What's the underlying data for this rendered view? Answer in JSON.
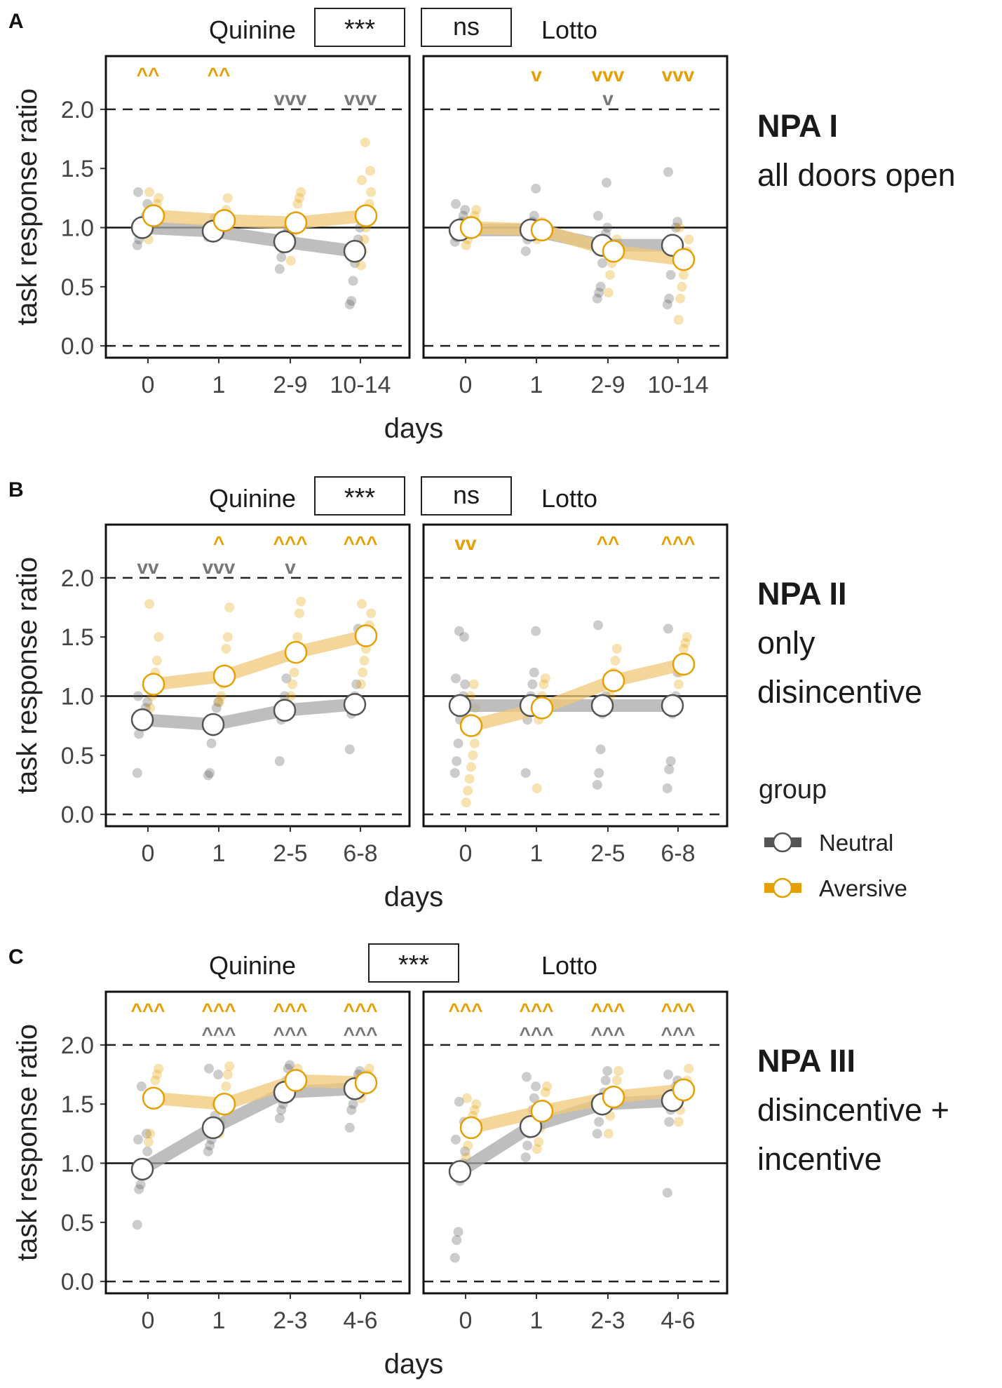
{
  "colors": {
    "neutral": "#555555",
    "neutral_line": "#a8a8a8",
    "aversive": "#e69f00",
    "aversive_line": "#f0c878"
  },
  "y_axis_label": "task response ratio",
  "x_axis_label": "days",
  "legend": {
    "title": "group",
    "items": [
      "Neutral",
      "Aversive"
    ]
  },
  "chart_data": [
    {
      "type": "line",
      "panel_label": "A",
      "condition": "NPA I",
      "condition_desc": [
        "all doors open"
      ],
      "xlabel": "days",
      "ylabel": "task response ratio",
      "yticks": [
        "0.0",
        "0.5",
        "1.0",
        "1.5",
        "2.0"
      ],
      "ylim": [
        -0.1,
        2.45
      ],
      "comparison_boxes": [
        "***",
        "ns"
      ],
      "facets": [
        {
          "name": "Quinine",
          "categories": [
            "0",
            "1",
            "2-9",
            "10-14"
          ],
          "series": [
            {
              "name": "Neutral",
              "values": [
                1.0,
                0.97,
                0.88,
                0.8
              ],
              "points": [
                [
                  0.85,
                  0.9,
                  0.95,
                  1.0,
                  1.05,
                  1.1,
                  1.2,
                  1.3
                ],
                [
                  0.92,
                  0.95,
                  0.98,
                  1.02,
                  1.08
                ],
                [
                  0.65,
                  0.75,
                  0.82,
                  0.88,
                  0.95,
                  1.0
                ],
                [
                  0.35,
                  0.38,
                  0.55,
                  0.7,
                  0.8,
                  0.9,
                  1.0
                ]
              ]
            },
            {
              "name": "Aversive",
              "values": [
                1.1,
                1.06,
                1.04,
                1.1
              ],
              "points": [
                [
                  0.9,
                  1.0,
                  1.05,
                  1.1,
                  1.15,
                  1.2,
                  1.25,
                  1.3
                ],
                [
                  0.98,
                  1.02,
                  1.06,
                  1.1,
                  1.15,
                  1.25
                ],
                [
                  0.72,
                  0.95,
                  1.0,
                  1.1,
                  1.2,
                  1.25,
                  1.3
                ],
                [
                  0.68,
                  0.8,
                  0.9,
                  1.0,
                  1.1,
                  1.2,
                  1.3,
                  1.4,
                  1.48,
                  1.72
                ]
              ]
            }
          ],
          "annotations": {
            "Aversive": [
              "^^",
              "^^",
              "",
              ""
            ],
            "Neutral": [
              "",
              "",
              "vvv",
              "vvv"
            ]
          }
        },
        {
          "name": "Lotto",
          "categories": [
            "0",
            "1",
            "2-9",
            "10-14"
          ],
          "series": [
            {
              "name": "Neutral",
              "values": [
                0.98,
                0.98,
                0.85,
                0.85
              ],
              "points": [
                [
                  0.88,
                  0.92,
                  0.95,
                  1.0,
                  1.05,
                  1.1,
                  1.15,
                  1.2
                ],
                [
                  0.8,
                  0.9,
                  0.95,
                  1.0,
                  1.05,
                  1.1,
                  1.33
                ],
                [
                  0.4,
                  0.45,
                  0.5,
                  0.7,
                  0.85,
                  0.95,
                  1.0,
                  1.1,
                  1.38
                ],
                [
                  0.35,
                  0.4,
                  0.6,
                  0.8,
                  0.9,
                  1.0,
                  1.05,
                  1.47
                ]
              ]
            },
            {
              "name": "Aversive",
              "values": [
                1.0,
                0.98,
                0.8,
                0.73
              ],
              "points": [
                [
                  0.85,
                  0.9,
                  0.95,
                  1.0,
                  1.05,
                  1.1,
                  1.15
                ],
                [
                  0.9,
                  0.95,
                  1.0,
                  1.05
                ],
                [
                  0.45,
                  0.6,
                  0.7,
                  0.8,
                  0.85,
                  0.9
                ],
                [
                  0.22,
                  0.4,
                  0.5,
                  0.6,
                  0.7,
                  0.8,
                  0.9,
                  1.0
                ]
              ]
            }
          ],
          "annotations": {
            "Aversive": [
              "",
              "v",
              "vvv",
              "vvv"
            ],
            "Neutral": [
              "",
              "",
              "v",
              ""
            ]
          }
        }
      ]
    },
    {
      "type": "line",
      "panel_label": "B",
      "condition": "NPA II",
      "condition_desc": [
        "only",
        "disincentive"
      ],
      "xlabel": "days",
      "ylabel": "task response ratio",
      "yticks": [
        "0.0",
        "0.5",
        "1.0",
        "1.5",
        "2.0"
      ],
      "ylim": [
        -0.1,
        2.45
      ],
      "comparison_boxes": [
        "***",
        "ns"
      ],
      "facets": [
        {
          "name": "Quinine",
          "categories": [
            "0",
            "1",
            "2-5",
            "6-8"
          ],
          "series": [
            {
              "name": "Neutral",
              "values": [
                0.8,
                0.76,
                0.88,
                0.93
              ],
              "points": [
                [
                  0.35,
                  0.68,
                  0.75,
                  0.8,
                  0.85,
                  0.9,
                  0.95,
                  1.0
                ],
                [
                  0.33,
                  0.35,
                  0.6,
                  0.7,
                  0.8,
                  0.9,
                  0.95
                ],
                [
                  0.45,
                  0.8,
                  0.9,
                  1.0,
                  1.15
                ],
                [
                  0.55,
                  0.85,
                  0.9,
                  1.0,
                  1.1,
                  1.57
                ]
              ]
            },
            {
              "name": "Aversive",
              "values": [
                1.1,
                1.17,
                1.37,
                1.51
              ],
              "points": [
                [
                  0.78,
                  0.9,
                  1.0,
                  1.1,
                  1.2,
                  1.3,
                  1.5,
                  1.78
                ],
                [
                  0.95,
                  1.0,
                  1.1,
                  1.2,
                  1.4,
                  1.5,
                  1.75
                ],
                [
                  1.0,
                  1.1,
                  1.2,
                  1.4,
                  1.5,
                  1.7,
                  1.8
                ],
                [
                  1.1,
                  1.2,
                  1.3,
                  1.4,
                  1.5,
                  1.6,
                  1.7,
                  1.78
                ]
              ]
            }
          ],
          "annotations": {
            "Aversive": [
              "",
              "^",
              "^^^",
              "^^^"
            ],
            "Neutral": [
              "vv",
              "vvv",
              "v",
              ""
            ]
          }
        },
        {
          "name": "Lotto",
          "categories": [
            "0",
            "1",
            "2-5",
            "6-8"
          ],
          "series": [
            {
              "name": "Neutral",
              "values": [
                0.92,
                0.92,
                0.92,
                0.92
              ],
              "points": [
                [
                  0.35,
                  0.45,
                  0.6,
                  0.8,
                  0.9,
                  1.0,
                  1.1,
                  1.15,
                  1.5,
                  1.55
                ],
                [
                  0.35,
                  0.8,
                  0.9,
                  1.0,
                  1.1,
                  1.2,
                  1.55
                ],
                [
                  0.25,
                  0.35,
                  0.55,
                  0.85,
                  0.95,
                  1.0,
                  1.1,
                  1.6
                ],
                [
                  0.22,
                  0.38,
                  0.45,
                  0.85,
                  0.95,
                  1.0,
                  1.2,
                  1.57
                ]
              ]
            },
            {
              "name": "Aversive",
              "values": [
                0.75,
                0.9,
                1.13,
                1.27
              ],
              "points": [
                [
                  0.1,
                  0.2,
                  0.3,
                  0.4,
                  0.5,
                  0.6,
                  0.7,
                  0.8,
                  0.9,
                  1.0,
                  1.1
                ],
                [
                  0.22,
                  0.8,
                  0.9,
                  1.0,
                  1.1,
                  1.15
                ],
                [
                  0.9,
                  1.0,
                  1.1,
                  1.2,
                  1.3,
                  1.4
                ],
                [
                  1.1,
                  1.2,
                  1.3,
                  1.4,
                  1.45,
                  1.5
                ]
              ]
            }
          ],
          "annotations": {
            "Aversive": [
              "vv",
              "",
              "^^",
              "^^^"
            ],
            "Neutral": [
              "",
              "",
              "",
              ""
            ]
          }
        }
      ]
    },
    {
      "type": "line",
      "panel_label": "C",
      "condition": "NPA III",
      "condition_desc": [
        "disincentive +",
        "incentive"
      ],
      "xlabel": "days",
      "ylabel": "task response ratio",
      "yticks": [
        "0.0",
        "0.5",
        "1.0",
        "1.5",
        "2.0"
      ],
      "ylim": [
        -0.1,
        2.45
      ],
      "comparison_boxes": [
        "***"
      ],
      "facets": [
        {
          "name": "Quinine",
          "categories": [
            "0",
            "1",
            "2-3",
            "4-6"
          ],
          "series": [
            {
              "name": "Neutral",
              "values": [
                0.95,
                1.3,
                1.6,
                1.63
              ],
              "points": [
                [
                  0.48,
                  0.78,
                  0.82,
                  0.9,
                  0.95,
                  1.0,
                  1.1,
                  1.2,
                  1.25,
                  1.65
                ],
                [
                  1.1,
                  1.15,
                  1.2,
                  1.3,
                  1.4,
                  1.5,
                  1.75,
                  1.8
                ],
                [
                  1.38,
                  1.45,
                  1.5,
                  1.6,
                  1.7,
                  1.8,
                  1.83
                ],
                [
                  1.3,
                  1.45,
                  1.5,
                  1.6,
                  1.7,
                  1.75,
                  1.78
                ]
              ]
            },
            {
              "name": "Aversive",
              "values": [
                1.55,
                1.5,
                1.7,
                1.68
              ],
              "points": [
                [
                  1.18,
                  1.25,
                  1.5,
                  1.6,
                  1.7,
                  1.75,
                  1.8
                ],
                [
                  1.25,
                  1.35,
                  1.45,
                  1.55,
                  1.65,
                  1.75,
                  1.82
                ],
                [
                  1.6,
                  1.65,
                  1.7,
                  1.75,
                  1.8
                ],
                [
                  1.55,
                  1.6,
                  1.65,
                  1.7,
                  1.75,
                  1.8
                ]
              ]
            }
          ],
          "annotations": {
            "Aversive": [
              "^^^",
              "^^^",
              "^^^",
              "^^^"
            ],
            "Neutral": [
              "",
              "^^^",
              "^^^",
              "^^^"
            ]
          }
        },
        {
          "name": "Lotto",
          "categories": [
            "0",
            "1",
            "2-3",
            "4-6"
          ],
          "series": [
            {
              "name": "Neutral",
              "values": [
                0.93,
                1.31,
                1.5,
                1.53
              ],
              "points": [
                [
                  0.2,
                  0.35,
                  0.42,
                  0.85,
                  0.95,
                  1.0,
                  1.1,
                  1.2,
                  1.35,
                  1.52
                ],
                [
                  1.05,
                  1.15,
                  1.25,
                  1.35,
                  1.45,
                  1.55,
                  1.65,
                  1.73
                ],
                [
                  1.25,
                  1.35,
                  1.45,
                  1.5,
                  1.6,
                  1.7,
                  1.78
                ],
                [
                  0.75,
                  1.35,
                  1.45,
                  1.55,
                  1.6,
                  1.65,
                  1.7,
                  1.75
                ]
              ]
            },
            {
              "name": "Aversive",
              "values": [
                1.3,
                1.44,
                1.56,
                1.62
              ],
              "points": [
                [
                  1.05,
                  1.15,
                  1.25,
                  1.3,
                  1.4,
                  1.45,
                  1.5,
                  1.55
                ],
                [
                  1.12,
                  1.18,
                  1.3,
                  1.4,
                  1.5,
                  1.6,
                  1.65
                ],
                [
                  1.25,
                  1.4,
                  1.5,
                  1.55,
                  1.6,
                  1.7,
                  1.78
                ],
                [
                  1.35,
                  1.45,
                  1.55,
                  1.6,
                  1.65,
                  1.7,
                  1.8
                ]
              ]
            }
          ],
          "annotations": {
            "Aversive": [
              "^^^",
              "^^^",
              "^^^",
              "^^^"
            ],
            "Neutral": [
              "",
              "^^^",
              "^^^",
              "^^^"
            ]
          }
        }
      ]
    }
  ]
}
